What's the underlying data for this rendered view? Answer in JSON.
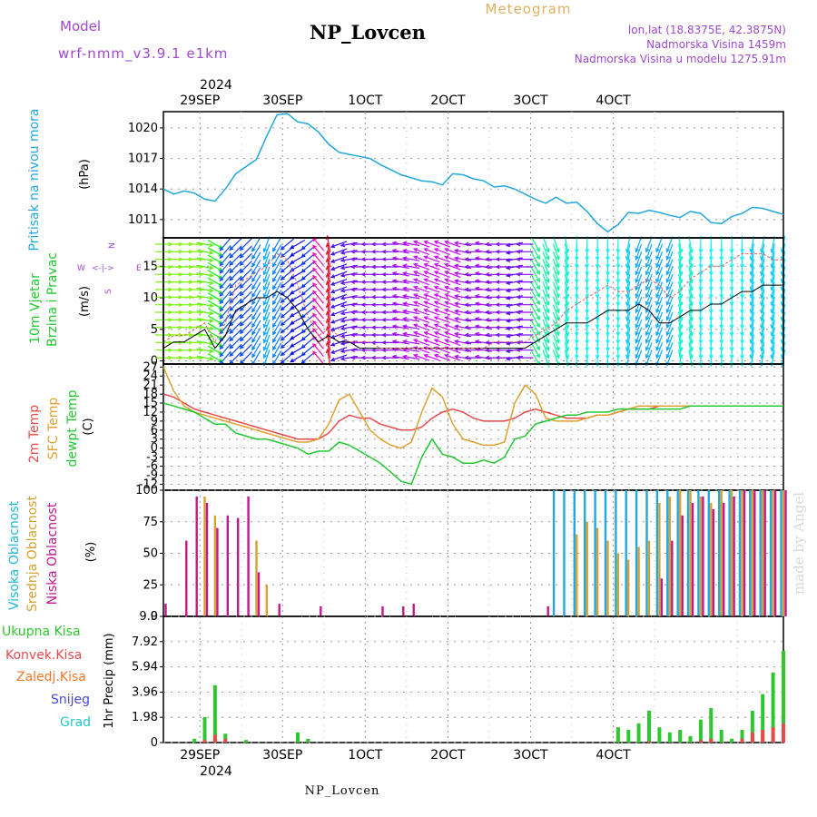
{
  "header": {
    "model_label": "Model",
    "model_name": "wrf-nmm_v3.9.1 e1km",
    "station": "NP_Lovcen",
    "product": "Meteogram",
    "lonlat": "lon,lat (18.8375E, 42.3875N)",
    "elevation": "Nadmorska Visina 1459m",
    "model_elevation": "Nadmorska Visina u modelu 1275.91m",
    "footer_station": "NP_Lovcen",
    "watermark": "made by Angel"
  },
  "time_axis": {
    "top_year": "2024",
    "bottom_year": "2024",
    "day_labels": [
      "29SEP",
      "30SEP",
      "1OCT",
      "2OCT",
      "3OCT",
      "4OCT"
    ]
  },
  "colors": {
    "pressure": "#22a7e0",
    "wind_label": "#22c830",
    "temp2m": "#e84a4a",
    "sfc": "#e0a030",
    "dew": "#22c830",
    "high_cloud": "#22a7e0",
    "mid_cloud": "#d8a030",
    "low_cloud": "#c01890",
    "precip_total": "#2ec82e",
    "precip_conv": "#e84a4a",
    "freezing": "#f07828",
    "snow": "#4848d8",
    "hail": "#22c8c8"
  },
  "chart_data": [
    {
      "type": "line",
      "panel": "pressure",
      "ylabel": [
        "Pritisak na nivou mora",
        "(hPa)"
      ],
      "y_ticks": [
        "1020",
        "1017",
        "1014",
        "1011"
      ],
      "ylim": [
        1009.2,
        1021.6
      ],
      "x_unit": "hours from 28SEP 12UTC",
      "x": [
        0,
        3,
        6,
        9,
        12,
        15,
        18,
        21,
        24,
        27,
        30,
        33,
        36,
        39,
        42,
        45,
        48,
        51,
        54,
        57,
        60,
        63,
        66,
        69,
        72,
        75,
        78,
        81,
        84,
        87,
        90,
        93,
        96,
        99,
        102,
        105,
        108,
        111,
        114,
        117,
        120,
        123,
        126,
        129,
        132,
        135,
        138,
        141,
        144,
        147,
        150,
        153,
        156,
        159,
        162,
        165,
        168,
        171,
        174,
        177,
        180
      ],
      "series": [
        {
          "values": [
            1014.0,
            1013.5,
            1013.8,
            1013.6,
            1013.0,
            1012.8,
            1014.0,
            1015.5,
            1016.2,
            1016.9,
            1019.2,
            1021.3,
            1021.4,
            1020.6,
            1020.4,
            1019.6,
            1018.4,
            1017.6,
            1017.4,
            1017.2,
            1017.0,
            1016.4,
            1015.9,
            1015.4,
            1015.1,
            1014.8,
            1014.7,
            1014.4,
            1015.5,
            1015.4,
            1015.0,
            1014.8,
            1014.2,
            1014.3,
            1014.0,
            1013.5,
            1013.0,
            1012.6,
            1013.2,
            1012.6,
            1012.7,
            1011.8,
            1010.6,
            1009.8,
            1010.5,
            1011.7,
            1011.6,
            1011.9,
            1011.7,
            1011.4,
            1011.2,
            1011.8,
            1011.6,
            1010.7,
            1010.6,
            1011.3,
            1011.6,
            1012.2,
            1012.1,
            1011.8,
            1011.5
          ]
        }
      ]
    },
    {
      "type": "line",
      "panel": "wind",
      "ylabel": [
        "10m Vjetar",
        "Brzina i Pravac",
        "(m/s)"
      ],
      "y_ticks": [
        "15",
        "10",
        "5",
        "0"
      ],
      "ylim": [
        -0.5,
        19.5
      ],
      "compass": {
        "n": "N",
        "s": "S",
        "e": "E",
        "w": "W"
      },
      "x_unit": "hours from 28SEP 12UTC",
      "x": [
        0,
        3,
        6,
        9,
        12,
        15,
        18,
        21,
        24,
        27,
        30,
        33,
        36,
        39,
        42,
        45,
        48,
        51,
        54,
        57,
        60,
        63,
        66,
        69,
        72,
        75,
        78,
        81,
        84,
        87,
        90,
        93,
        96,
        99,
        102,
        105,
        108,
        111,
        114,
        117,
        120,
        123,
        126,
        129,
        132,
        135,
        138,
        141,
        144,
        147,
        150,
        153,
        156,
        159,
        162,
        165,
        168,
        171,
        174,
        177,
        180
      ],
      "series": [
        {
          "name": "speed",
          "values": [
            2,
            3,
            3,
            4,
            5,
            2,
            4,
            8,
            9,
            10,
            10,
            11,
            10,
            8,
            5,
            3,
            4,
            3,
            3,
            2,
            2,
            2,
            2,
            2,
            2,
            2,
            2,
            2,
            2,
            2,
            2,
            2,
            2,
            2,
            2,
            2,
            3,
            4,
            5,
            6,
            6,
            6,
            7,
            8,
            8,
            8,
            9,
            8,
            6,
            6,
            7,
            8,
            8,
            9,
            9,
            10,
            11,
            11,
            12,
            12,
            12
          ]
        },
        {
          "name": "gust",
          "values": [
            3,
            4,
            4,
            5,
            6,
            3,
            6,
            12,
            13,
            14,
            15,
            17,
            16,
            12,
            7,
            4,
            5,
            4,
            3,
            3,
            3,
            2,
            2,
            2,
            2,
            2,
            2,
            2,
            2,
            2,
            2,
            2,
            3,
            3,
            3,
            3,
            4,
            5,
            6,
            8,
            9,
            10,
            11,
            12,
            11,
            11,
            12,
            13,
            12,
            10,
            11,
            13,
            14,
            15,
            15,
            16,
            17,
            17,
            17,
            16,
            16
          ]
        }
      ],
      "direction_deg": [
        90,
        90,
        90,
        90,
        100,
        120,
        220,
        225,
        225,
        210,
        200,
        210,
        230,
        240,
        230,
        320,
        350,
        250,
        260,
        270,
        270,
        270,
        270,
        280,
        280,
        290,
        290,
        290,
        290,
        280,
        270,
        280,
        270,
        270,
        260,
        270,
        150,
        160,
        160,
        170,
        180,
        180,
        180,
        180,
        180,
        190,
        200,
        200,
        200,
        200,
        170,
        170,
        180,
        180,
        180,
        180,
        180,
        190,
        190,
        190,
        190
      ]
    },
    {
      "type": "line",
      "panel": "temperature",
      "ylabel": [
        "2m Temp",
        "SFC Temp",
        "dewpt Temp",
        "(C)"
      ],
      "y_ticks": [
        "27",
        "24",
        "21",
        "18",
        "15",
        "12",
        "9",
        "6",
        "3",
        "0",
        "-3",
        "-6",
        "-9",
        "-12"
      ],
      "ylim": [
        -14,
        28
      ],
      "x_unit": "hours from 28SEP 12UTC",
      "x": [
        0,
        3,
        6,
        9,
        12,
        15,
        18,
        21,
        24,
        27,
        30,
        33,
        36,
        39,
        42,
        45,
        48,
        51,
        54,
        57,
        60,
        63,
        66,
        69,
        72,
        75,
        78,
        81,
        84,
        87,
        90,
        93,
        96,
        99,
        102,
        105,
        108,
        111,
        114,
        117,
        120,
        123,
        126,
        129,
        132,
        135,
        138,
        141,
        144,
        147,
        150,
        153,
        156,
        159,
        162,
        165,
        168,
        171,
        174,
        177,
        180
      ],
      "series": [
        {
          "name": "2m Temp",
          "values": [
            18,
            17,
            15,
            13,
            12,
            11,
            10,
            9,
            8,
            7,
            6,
            5,
            4,
            3,
            3,
            3,
            5,
            9,
            11,
            10,
            10,
            8,
            7,
            6,
            6,
            7,
            10,
            12,
            13,
            12,
            10,
            9,
            9,
            9,
            10,
            12,
            13,
            12,
            11,
            10,
            10,
            10,
            11,
            11,
            12,
            13,
            13,
            13,
            14,
            14,
            14,
            14,
            14,
            14,
            14,
            14,
            14,
            14,
            14,
            14,
            14
          ]
        },
        {
          "name": "SFC Temp",
          "values": [
            27,
            19,
            14,
            12,
            11,
            10,
            9,
            8,
            7,
            6,
            5,
            4,
            3,
            2,
            2,
            3,
            8,
            16,
            18,
            12,
            6,
            3,
            1,
            0,
            2,
            12,
            20,
            17,
            8,
            3,
            2,
            1,
            1,
            2,
            15,
            21,
            18,
            10,
            9,
            9,
            9,
            10,
            11,
            11,
            12,
            13,
            14,
            14,
            14,
            14,
            14,
            14,
            14,
            14,
            14,
            14,
            14,
            14,
            14,
            14,
            14
          ]
        },
        {
          "name": "dewpt Temp",
          "values": [
            15,
            14,
            13,
            12,
            10,
            8,
            8,
            5,
            4,
            3,
            3,
            2,
            1,
            0,
            -2,
            -1,
            -1,
            2,
            1,
            -1,
            -3,
            -5,
            -8,
            -11,
            -12,
            -3,
            3,
            -2,
            -3,
            -5,
            -5,
            -4,
            -5,
            -3,
            3,
            4,
            8,
            9,
            10,
            11,
            11,
            12,
            12,
            12,
            13,
            13,
            13,
            13,
            13,
            13,
            13,
            14,
            14,
            14,
            14,
            14,
            14,
            14,
            14,
            14,
            14
          ]
        }
      ]
    },
    {
      "type": "bar",
      "panel": "clouds",
      "ylabel": [
        "Visoka Oblacnost",
        "Srednja Oblacnost",
        "Niska Oblacnost",
        "(%)"
      ],
      "y_ticks": [
        "100",
        "75",
        "50",
        "25",
        "0"
      ],
      "ylim": [
        0,
        100
      ],
      "x_unit": "hours from 28SEP 12UTC",
      "x": [
        0,
        3,
        6,
        9,
        12,
        15,
        18,
        21,
        24,
        27,
        30,
        33,
        36,
        39,
        42,
        45,
        48,
        51,
        54,
        57,
        60,
        63,
        66,
        69,
        72,
        75,
        78,
        81,
        84,
        87,
        90,
        93,
        96,
        99,
        102,
        105,
        108,
        111,
        114,
        117,
        120,
        123,
        126,
        129,
        132,
        135,
        138,
        141,
        144,
        147,
        150,
        153,
        156,
        159,
        162,
        165,
        168,
        171,
        174,
        177,
        180
      ],
      "series": [
        {
          "name": "Visoka Oblacnost",
          "values": [
            0,
            0,
            0,
            0,
            0,
            0,
            0,
            0,
            0,
            0,
            0,
            0,
            0,
            0,
            0,
            0,
            0,
            0,
            0,
            0,
            0,
            0,
            0,
            0,
            0,
            0,
            0,
            0,
            0,
            0,
            0,
            0,
            0,
            0,
            0,
            0,
            0,
            0,
            100,
            100,
            100,
            100,
            100,
            100,
            100,
            100,
            100,
            100,
            100,
            100,
            100,
            100,
            100,
            100,
            100,
            100,
            100,
            100,
            100,
            100,
            100
          ]
        },
        {
          "name": "Srednja Oblacnost",
          "values": [
            0,
            0,
            0,
            0,
            95,
            80,
            0,
            0,
            0,
            60,
            25,
            0,
            0,
            0,
            0,
            0,
            0,
            0,
            0,
            0,
            0,
            0,
            0,
            0,
            0,
            0,
            0,
            0,
            0,
            0,
            0,
            0,
            0,
            0,
            0,
            0,
            0,
            0,
            0,
            0,
            65,
            75,
            70,
            60,
            50,
            45,
            55,
            60,
            90,
            95,
            100,
            100,
            95,
            90,
            100,
            100,
            100,
            100,
            100,
            100,
            100
          ]
        },
        {
          "name": "Niska Oblacnost",
          "values": [
            10,
            0,
            60,
            95,
            90,
            70,
            80,
            78,
            95,
            35,
            0,
            10,
            0,
            0,
            0,
            8,
            0,
            0,
            0,
            0,
            0,
            8,
            0,
            8,
            10,
            0,
            0,
            0,
            0,
            0,
            0,
            0,
            0,
            0,
            0,
            0,
            0,
            8,
            0,
            0,
            0,
            0,
            0,
            0,
            0,
            0,
            0,
            0,
            30,
            60,
            80,
            90,
            95,
            85,
            90,
            95,
            100,
            100,
            100,
            100,
            100
          ]
        }
      ]
    },
    {
      "type": "bar",
      "panel": "precipitation",
      "ylabel": [
        "1hr Precip (mm)"
      ],
      "legend": [
        "Ukupna Kisa",
        "Konvek.Kisa",
        "Zaledj.Kisa",
        "Snijeg",
        "Grad"
      ],
      "y_ticks": [
        "9.9",
        "7.92",
        "5.94",
        "3.96",
        "1.98",
        "0"
      ],
      "ylim": [
        0,
        9.9
      ],
      "x_unit": "hours from 28SEP 12UTC",
      "x": [
        0,
        3,
        6,
        9,
        12,
        15,
        18,
        21,
        24,
        27,
        30,
        33,
        36,
        39,
        42,
        45,
        48,
        51,
        54,
        57,
        60,
        63,
        66,
        69,
        72,
        75,
        78,
        81,
        84,
        87,
        90,
        93,
        96,
        99,
        102,
        105,
        108,
        111,
        114,
        117,
        120,
        123,
        126,
        129,
        132,
        135,
        138,
        141,
        144,
        147,
        150,
        153,
        156,
        159,
        162,
        165,
        168,
        171,
        174,
        177,
        180
      ],
      "series": [
        {
          "name": "Ukupna Kisa",
          "values": [
            0,
            0,
            0,
            0.3,
            2.0,
            4.5,
            0.7,
            0,
            0.2,
            0,
            0,
            0,
            0,
            0.8,
            0.3,
            0,
            0,
            0,
            0,
            0,
            0,
            0,
            0,
            0,
            0,
            0,
            0,
            0,
            0,
            0,
            0,
            0,
            0,
            0,
            0,
            0,
            0,
            0,
            0,
            0,
            0,
            0,
            0,
            0,
            1.2,
            1.0,
            1.5,
            2.5,
            1.2,
            0.8,
            1.0,
            0.5,
            1.8,
            2.7,
            1.0,
            0.3,
            1.0,
            2.5,
            3.8,
            5.5,
            7.2
          ]
        },
        {
          "name": "Konvek.Kisa",
          "values": [
            0,
            0,
            0,
            0,
            0.2,
            0.6,
            0.3,
            0,
            0,
            0,
            0,
            0,
            0,
            0,
            0,
            0,
            0,
            0,
            0,
            0,
            0,
            0,
            0,
            0,
            0,
            0,
            0,
            0,
            0,
            0,
            0,
            0,
            0,
            0,
            0,
            0,
            0,
            0,
            0,
            0,
            0,
            0,
            0,
            0,
            0,
            0,
            0,
            0.1,
            0,
            0,
            0,
            0,
            0.2,
            0.3,
            0,
            0,
            0.3,
            0.8,
            1.0,
            1.2,
            1.5
          ]
        }
      ]
    }
  ]
}
